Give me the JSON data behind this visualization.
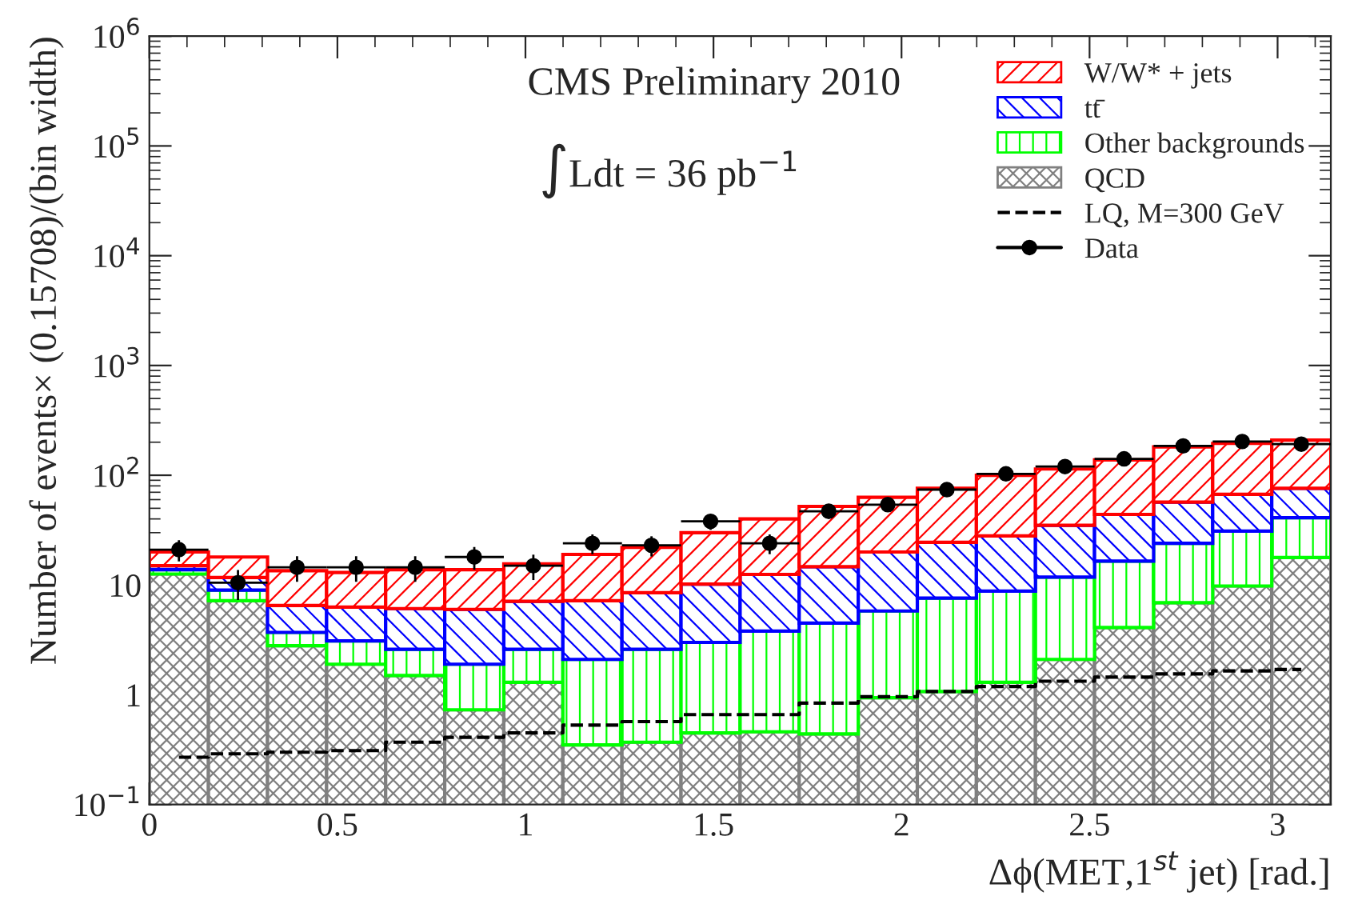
{
  "chart_data": {
    "type": "bar",
    "stacked": true,
    "log": "y",
    "annotations": [
      "CMS Preliminary 2010",
      "∫Ldt = 36 pb$^{−1}$"
    ],
    "xlabel": "Δϕ(MET,1$^{st}$ jet) [rad.]",
    "ylabel": "Number of events× (0.15708)/(bin width)",
    "x": [
      0.07854,
      0.23562,
      0.3927,
      0.54978,
      0.70686,
      0.86394,
      1.02102,
      1.1781,
      1.33518,
      1.49226,
      1.64934,
      1.80642,
      1.9635,
      2.12058,
      2.27766,
      2.43474,
      2.59182,
      2.7489,
      2.90598,
      3.06306
    ],
    "series": [
      {
        "name": "QCD",
        "color": "#808080",
        "values": [
          12.6,
          7.2,
          2.8,
          1.9,
          1.5,
          0.73,
          1.3,
          0.35,
          0.37,
          0.45,
          0.46,
          0.44,
          0.94,
          1.07,
          1.3,
          2.1,
          4.1,
          6.9,
          9.8,
          17.8
        ]
      },
      {
        "name": "Other backgrounds",
        "color": "#00ff00",
        "values": [
          1.2,
          1.8,
          0.9,
          1.2,
          1.1,
          1.17,
          1.3,
          1.75,
          2.23,
          2.55,
          3.34,
          4.06,
          4.86,
          6.53,
          7.5,
          9.7,
          12.4,
          17.1,
          21.2,
          23.2
        ]
      },
      {
        "name": "tt̄",
        "color": "#0000ff",
        "values": [
          1.2,
          2.7,
          2.8,
          3.2,
          3.5,
          4.1,
          4.5,
          5.1,
          5.9,
          7.2,
          8.7,
          10.2,
          14.2,
          16.9,
          19.2,
          23.2,
          27.5,
          33,
          36,
          35
        ]
      },
      {
        "name": "W/W* + jets",
        "color": "#ff0000",
        "values": [
          5,
          6.3,
          7,
          6.7,
          7.7,
          7.8,
          8.5,
          11.8,
          13.5,
          19.8,
          27.5,
          37.3,
          43,
          51.5,
          72,
          79,
          94,
          124,
          128,
          133
        ]
      },
      {
        "name": "LQ, M=300 GeV",
        "type": "step",
        "color": "#000000",
        "line_style": "dashed",
        "values": [
          0.27,
          0.29,
          0.3,
          0.31,
          0.37,
          0.41,
          0.45,
          0.53,
          0.57,
          0.66,
          0.66,
          0.84,
          0.96,
          1.07,
          1.19,
          1.33,
          1.45,
          1.55,
          1.65,
          1.7
        ]
      },
      {
        "name": "Data",
        "type": "scatter",
        "color": "#000000",
        "marker": "circle",
        "x": [
          0.07854,
          0.23562,
          0.3927,
          0.54978,
          0.70686,
          0.86394,
          1.02102,
          1.1781,
          1.33518,
          1.49226,
          1.64934,
          1.80642,
          1.9635,
          2.12058,
          2.27766,
          2.43474,
          2.59182,
          2.7489,
          2.90598,
          3.06306
        ],
        "values": [
          21,
          10.5,
          14.5,
          14.5,
          14.5,
          18,
          15,
          24,
          23,
          38,
          24,
          47,
          54,
          74,
          103,
          120,
          141,
          185,
          203,
          192
        ],
        "errors": [
          4.6,
          3.2,
          3.8,
          3.8,
          3.8,
          4.2,
          3.9,
          4.9,
          4.8,
          6.2,
          4.9,
          6.9,
          7.3,
          8.6,
          10,
          11,
          12,
          14,
          14,
          14
        ],
        "xerrors": [
          0.07854,
          0.07854,
          0.07854,
          0.07854,
          0.07854,
          0.07854,
          0.07854,
          0.07854,
          0.07854,
          0.07854,
          0.07854,
          0.07854,
          0.07854,
          0.07854,
          0.07854,
          0.07854,
          0.07854,
          0.07854,
          0.07854,
          0.07854
        ]
      }
    ],
    "xlim": [
      0,
      3.1416
    ],
    "xticks": [
      0,
      0.5,
      1,
      1.5,
      2,
      2.5,
      3
    ],
    "ylim": [
      0.1,
      1000000
    ],
    "yticks": [
      {
        "value": 0.1,
        "label": "10$^{−1}$"
      },
      1,
      10,
      {
        "value": 100,
        "label": "10$^{2}$"
      },
      {
        "value": 1000,
        "label": "10$^{3}$"
      },
      {
        "value": 10000,
        "label": "10$^{4}$"
      },
      {
        "value": 100000,
        "label": "10$^{5}$"
      },
      {
        "value": 1000000,
        "label": "10$^{6}$"
      }
    ],
    "legend": "top right",
    "grid": false
  }
}
